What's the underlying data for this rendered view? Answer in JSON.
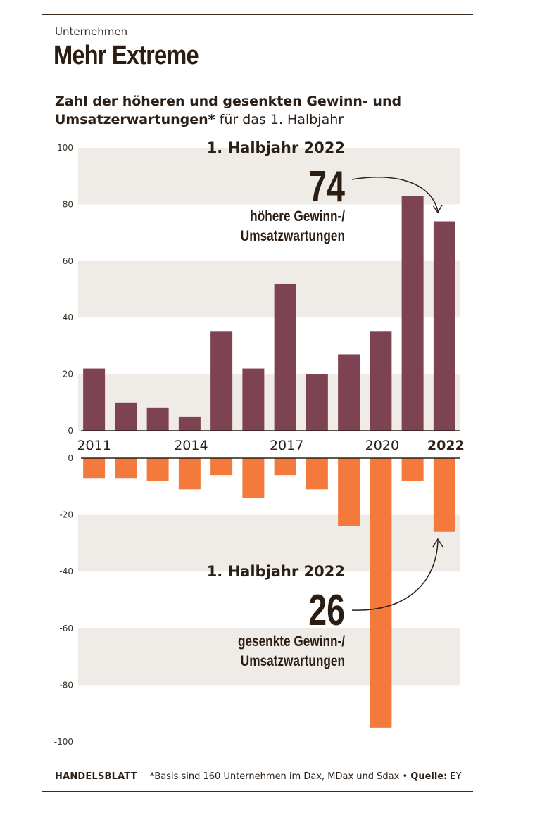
{
  "header": {
    "kicker": "Unternehmen",
    "title": "Mehr Extreme",
    "subtitle_bold": "Zahl der höheren und gesenkten Gewinn- und Umsatzerwartungen*",
    "subtitle_rest": " für das 1. Halbjahr"
  },
  "footer": {
    "brand": "HANDELSBLATT",
    "note": "*Basis sind 160 Unternehmen im Dax, MDax und Sdax • ",
    "source_label": "Quelle:",
    "source_value": " EY"
  },
  "annotations": {
    "top": {
      "heading": "1. Halbjahr 2022",
      "value": "74",
      "line1": "höhere Gewinn-/",
      "line2": "Umsatzwartungen"
    },
    "bottom": {
      "heading": "1. Halbjahr 2022",
      "value": "26",
      "line1": "gesenkte Gewinn-/",
      "line2": "Umsatzwartungen"
    }
  },
  "colors": {
    "raised": "#7e4352",
    "lowered": "#f37a3c",
    "band": "#efece8",
    "text": "#2b2018"
  },
  "chart_data": [
    {
      "type": "bar",
      "categories": [
        "2011",
        "2012",
        "2013",
        "2014",
        "2015",
        "2016",
        "2017",
        "2018",
        "2019",
        "2020",
        "2021",
        "2022"
      ],
      "category_labels": [
        "2011",
        "",
        "",
        "2014",
        "",
        "",
        "2017",
        "",
        "",
        "2020",
        "",
        "2022"
      ],
      "values": [
        22,
        10,
        8,
        5,
        35,
        22,
        52,
        20,
        27,
        35,
        83,
        74
      ],
      "ylim": [
        0,
        100
      ],
      "yticks": [
        0,
        20,
        40,
        60,
        80,
        100
      ],
      "grid": "alternating bands",
      "title": "",
      "xlabel": "",
      "ylabel": ""
    },
    {
      "type": "bar",
      "categories": [
        "2011",
        "2012",
        "2013",
        "2014",
        "2015",
        "2016",
        "2017",
        "2018",
        "2019",
        "2020",
        "2021",
        "2022"
      ],
      "values": [
        -7,
        -7,
        -8,
        -11,
        -6,
        -14,
        -6,
        -11,
        -24,
        -95,
        -8,
        -26
      ],
      "ylim": [
        -100,
        0
      ],
      "yticks": [
        0,
        -20,
        -40,
        -60,
        -80,
        -100
      ],
      "grid": "alternating bands",
      "title": "",
      "xlabel": "",
      "ylabel": ""
    }
  ]
}
